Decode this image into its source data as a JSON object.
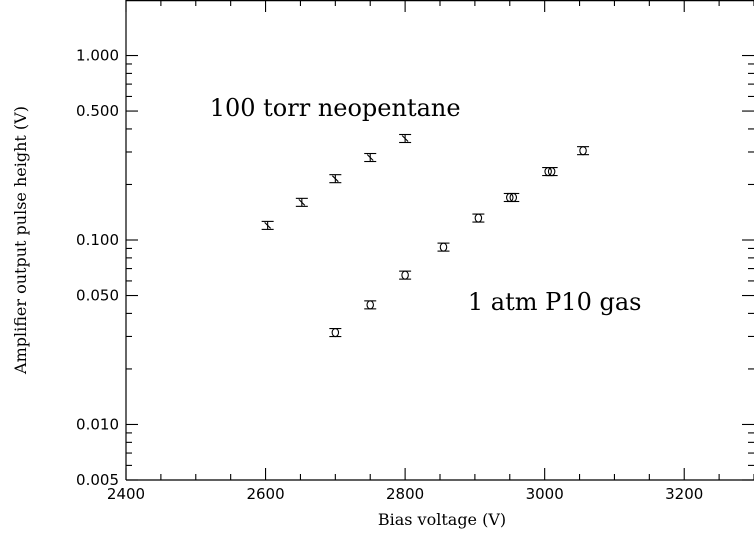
{
  "chart_data": {
    "type": "scatter",
    "title": "",
    "xlabel": "Bias voltage (V)",
    "ylabel": "Amplifier output pulse height (V)",
    "xlim": [
      2400,
      3300
    ],
    "ylim": [
      0.005,
      2.0
    ],
    "y_scale": "log",
    "grid": false,
    "x_ticks": [
      2400,
      2600,
      2800,
      3000,
      3200
    ],
    "x_tick_labels": [
      "2400",
      "2600",
      "2800",
      "3000",
      "3200"
    ],
    "y_ticks": [
      1.0,
      0.5,
      0.1,
      0.05,
      0.01,
      0.005
    ],
    "y_tick_labels": [
      "1.000",
      "0.500",
      "0.100",
      "0.050",
      "0.010",
      "0.005"
    ],
    "annotations": [
      {
        "text": "100 torr neopentane",
        "x": 2520,
        "y": 0.52
      },
      {
        "text": "1 atm P10 gas",
        "x": 2890,
        "y": 0.046
      }
    ],
    "series": [
      {
        "marker": "I",
        "x": [
          2603,
          2652,
          2700,
          2750,
          2800
        ],
        "y": [
          0.12,
          0.16,
          0.215,
          0.28,
          0.355
        ]
      },
      {
        "marker": "o",
        "x": [
          2700,
          2750,
          2800,
          2855,
          2905,
          2950,
          2955,
          3005,
          3010,
          3055
        ],
        "y": [
          0.0315,
          0.0445,
          0.0645,
          0.0915,
          0.1315,
          0.17,
          0.17,
          0.235,
          0.235,
          0.305
        ]
      }
    ]
  }
}
